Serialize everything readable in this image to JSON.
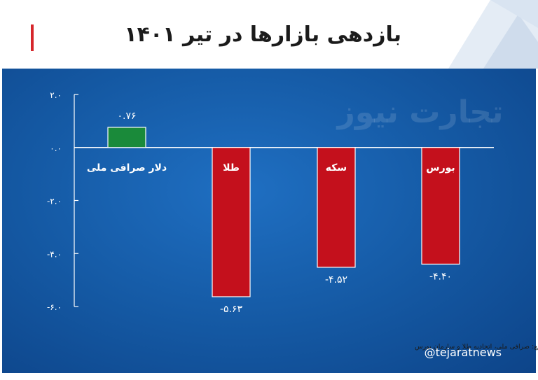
{
  "header": {
    "title": "بازدهی بازارها در تیر ۱۴۰۱",
    "accent_color": "#d6262b"
  },
  "watermark": "تجارت نیوز",
  "source": "منبع: صرافی ملی، اتحادیه طلا و سازمان بورس",
  "handle": "@tejaratnews",
  "chart_data": {
    "type": "bar",
    "categories": [
      "دلار صرافی ملی",
      "طلا",
      "سکه",
      "بورس"
    ],
    "values": [
      0.76,
      -5.63,
      -4.52,
      -4.4
    ],
    "value_labels": [
      "۰.۷۶",
      "-۵.۶۳",
      "-۴.۵۲",
      "-۴.۴۰"
    ],
    "colors": [
      "#1a8a3a",
      "#c4101c",
      "#c4101c",
      "#c4101c"
    ],
    "ylim": [
      -6.0,
      2.0
    ],
    "yticks": [
      2.0,
      0.0,
      -2.0,
      -4.0,
      -6.0
    ],
    "ytick_labels": [
      "۲.۰",
      "۰.۰",
      "-۲.۰",
      "-۴.۰",
      "-۶.۰"
    ],
    "title": "",
    "xlabel": "",
    "ylabel": "",
    "grid": false,
    "background": "#155aa5"
  }
}
